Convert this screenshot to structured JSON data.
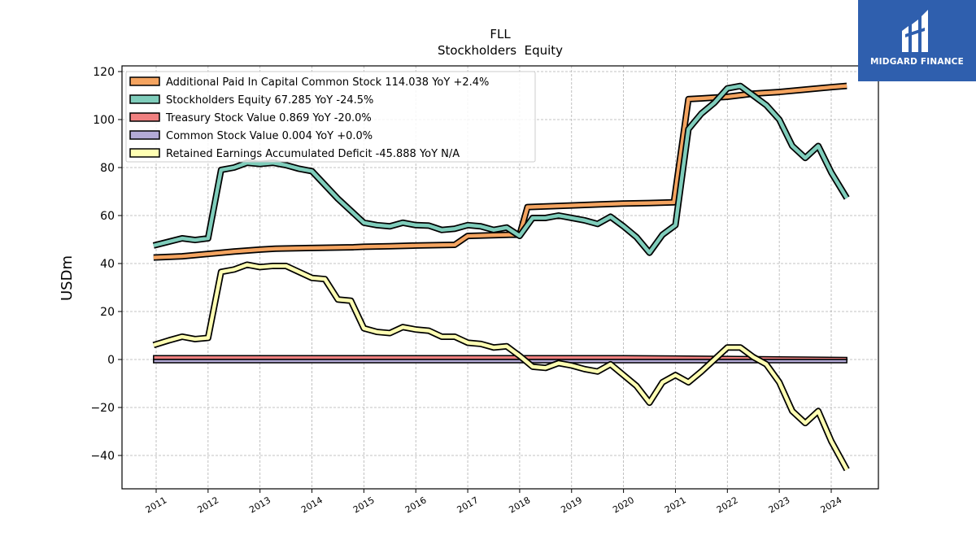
{
  "chart_data": {
    "type": "line",
    "title": "FLL",
    "subtitle": "Stockholders  Equity",
    "ylabel": "USDm",
    "xlabel": "",
    "ylim": [
      -53,
      123
    ],
    "xlim": [
      2010.4,
      2024.9
    ],
    "yticks": [
      -40,
      -20,
      0,
      20,
      40,
      60,
      80,
      100,
      120
    ],
    "ytick_labels": [
      "−40",
      "−20",
      "0",
      "20",
      "40",
      "60",
      "80",
      "100",
      "120"
    ],
    "xticks": [
      2011,
      2012,
      2013,
      2014,
      2015,
      2016,
      2017,
      2018,
      2019,
      2020,
      2021,
      2022,
      2023,
      2024
    ],
    "grid": true,
    "legend_position": "top-left",
    "series": [
      {
        "name": "Additional Paid In Capital Common Stock",
        "legend_label": "Additional Paid In Capital Common Stock  114.038 YoY +2.4%",
        "color": "#f4a460",
        "x": [
          2010.95,
          2011.5,
          2012.0,
          2012.5,
          2013.0,
          2013.3,
          2014.0,
          2014.8,
          2015.0,
          2015.5,
          2016.0,
          2016.75,
          2017.0,
          2017.8,
          2018.0,
          2018.15,
          2019.0,
          2019.5,
          2020.0,
          2020.5,
          2020.97,
          2021.25,
          2021.5,
          2022.0,
          2022.5,
          2023.0,
          2023.5,
          2024.0,
          2024.3
        ],
        "values": [
          42.5,
          43.0,
          44.0,
          45.0,
          45.8,
          46.2,
          46.5,
          46.8,
          47.0,
          47.2,
          47.5,
          47.8,
          51.5,
          52.0,
          52.0,
          63.5,
          64.2,
          64.6,
          65.0,
          65.2,
          65.5,
          108.5,
          108.8,
          109.5,
          110.8,
          111.5,
          112.5,
          113.5,
          114.038
        ]
      },
      {
        "name": "Stockholders Equity",
        "legend_label": "Stockholders Equity  67.285 YoY -24.5%",
        "color": "#7fcdbb",
        "x": [
          2010.95,
          2011.5,
          2011.75,
          2012.0,
          2012.25,
          2012.5,
          2012.75,
          2013.0,
          2013.25,
          2013.5,
          2013.75,
          2014.0,
          2014.5,
          2015.0,
          2015.25,
          2015.5,
          2015.75,
          2016.0,
          2016.25,
          2016.5,
          2016.75,
          2017.0,
          2017.25,
          2017.5,
          2017.75,
          2018.0,
          2018.25,
          2018.5,
          2018.75,
          2019.0,
          2019.25,
          2019.5,
          2019.75,
          2020.0,
          2020.25,
          2020.5,
          2020.75,
          2021.0,
          2021.25,
          2021.5,
          2021.75,
          2022.0,
          2022.25,
          2022.5,
          2022.75,
          2023.0,
          2023.25,
          2023.5,
          2023.75,
          2024.0,
          2024.3
        ],
        "values": [
          47.5,
          50.5,
          49.8,
          50.5,
          79.0,
          80.0,
          82.0,
          81.5,
          82.0,
          81.0,
          79.5,
          78.5,
          67.0,
          57.0,
          56.0,
          55.5,
          57.0,
          56.0,
          55.8,
          54.0,
          54.5,
          56.0,
          55.5,
          54.0,
          55.0,
          51.5,
          59.0,
          59.0,
          60.0,
          59.0,
          58.0,
          56.5,
          59.5,
          55.5,
          51.0,
          44.5,
          52.0,
          56.0,
          96.0,
          102.5,
          107.0,
          113.0,
          114.0,
          110.0,
          106.0,
          100.0,
          89.0,
          84.0,
          89.0,
          78.0,
          67.285
        ]
      },
      {
        "name": "Treasury Stock Value",
        "legend_label": "Treasury Stock Value  0.869 YoY -20.0%",
        "color": "#f08080",
        "x": [
          2010.95,
          2012.0,
          2014.0,
          2016.0,
          2018.0,
          2020.0,
          2021.0,
          2022.0,
          2023.0,
          2023.5,
          2024.3
        ],
        "values": [
          1.6,
          1.6,
          1.6,
          1.6,
          1.6,
          1.6,
          1.5,
          1.3,
          1.1,
          1.0,
          0.869
        ]
      },
      {
        "name": "Common Stock Value",
        "legend_label": "Common Stock Value  0.004 YoY +0.0%",
        "color": "#b3aad6",
        "x": [
          2010.95,
          2024.3
        ],
        "values": [
          0.004,
          0.004
        ]
      },
      {
        "name": "Retained Earnings Accumulated Deficit",
        "legend_label": "Retained Earnings Accumulated Deficit  -45.888 YoY N/A",
        "color": "#ffffb3",
        "x": [
          2010.95,
          2011.25,
          2011.5,
          2011.75,
          2012.0,
          2012.25,
          2012.5,
          2012.75,
          2013.0,
          2013.25,
          2013.5,
          2013.75,
          2014.0,
          2014.25,
          2014.5,
          2014.75,
          2015.0,
          2015.25,
          2015.5,
          2015.75,
          2016.0,
          2016.25,
          2016.5,
          2016.75,
          2017.0,
          2017.25,
          2017.5,
          2017.75,
          2018.0,
          2018.25,
          2018.5,
          2018.75,
          2019.0,
          2019.25,
          2019.5,
          2019.75,
          2020.0,
          2020.25,
          2020.5,
          2020.75,
          2021.0,
          2021.25,
          2021.5,
          2021.75,
          2022.0,
          2022.25,
          2022.5,
          2022.75,
          2023.0,
          2023.25,
          2023.5,
          2023.75,
          2024.0,
          2024.3
        ],
        "values": [
          6.0,
          8.0,
          9.5,
          8.5,
          9.0,
          36.5,
          37.5,
          39.5,
          38.5,
          39.0,
          39.0,
          36.5,
          34.0,
          33.5,
          25.0,
          24.5,
          13.0,
          11.5,
          11.0,
          13.5,
          12.5,
          12.0,
          9.5,
          9.5,
          7.0,
          6.5,
          5.0,
          5.5,
          1.5,
          -3.0,
          -3.5,
          -1.5,
          -2.5,
          -4.0,
          -5.0,
          -2.0,
          -6.5,
          -11.0,
          -18.0,
          -9.5,
          -6.5,
          -9.5,
          -5.0,
          0.0,
          5.0,
          5.0,
          1.0,
          -2.0,
          -9.5,
          -21.5,
          -26.5,
          -21.5,
          -34.0,
          -45.888
        ]
      }
    ]
  },
  "branding": {
    "name": "MIDGARD FINANCE",
    "bg_color": "#2f5fae",
    "logo_icon": "bank-logo-icon"
  }
}
